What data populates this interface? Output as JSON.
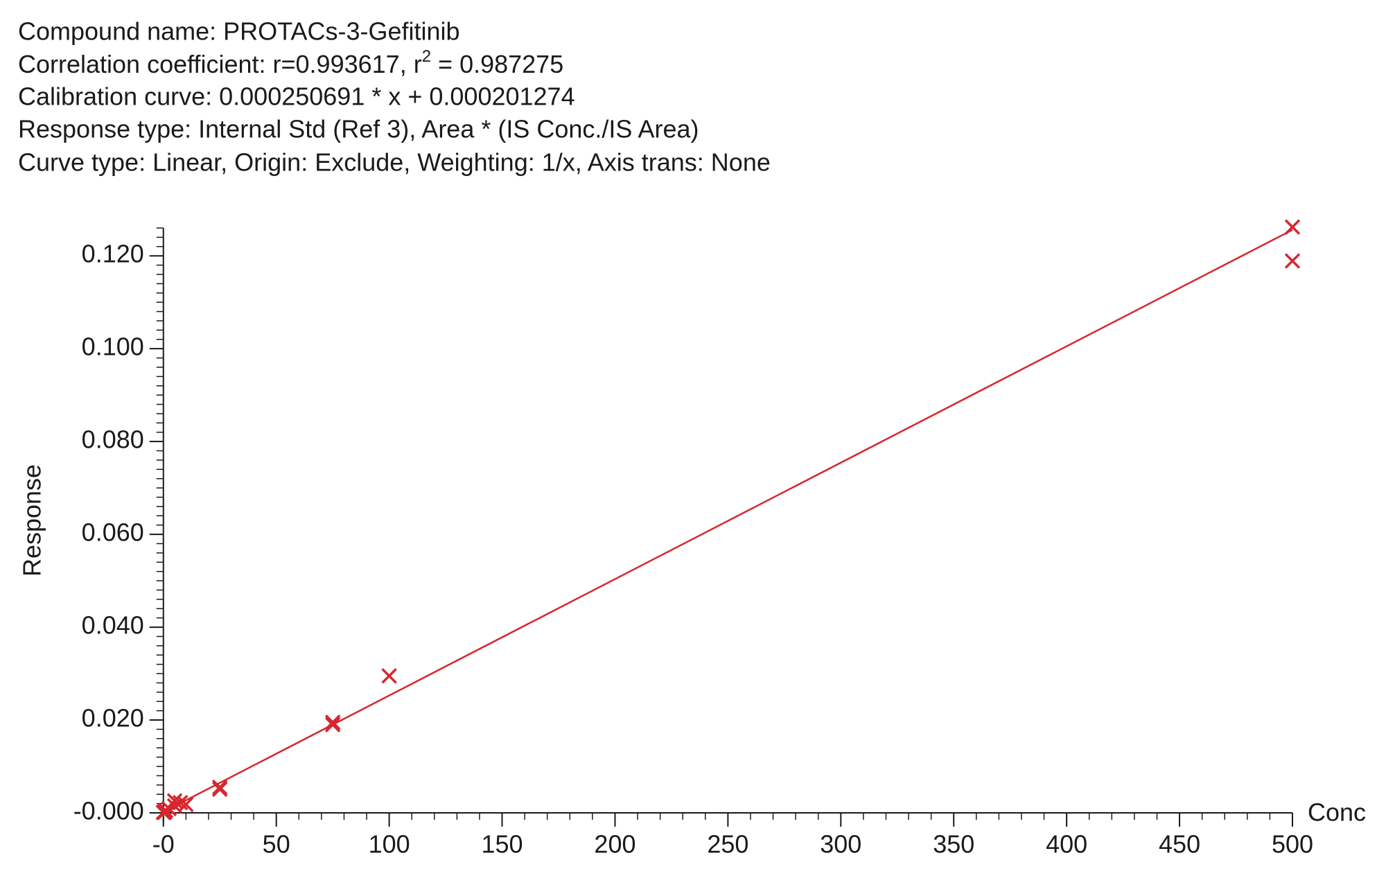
{
  "chart_data": {
    "type": "scatter",
    "header": {
      "compound": "Compound name: PROTACs-3-Gefitinib",
      "correlation": [
        "Correlation coefficient: r=0.993617, r",
        "2",
        " = 0.987275"
      ],
      "calibration": "Calibration curve: 0.000250691 * x + 0.000201274",
      "response": "Response type: Internal Std (Ref 3), Area * (IS Conc./IS Area)",
      "curve": "Curve type: Linear, Origin: Exclude, Weighting: 1/x, Axis trans: None"
    },
    "x_label": "Conc",
    "y_label": "Response",
    "xlim": [
      -3,
      500
    ],
    "ylim": [
      0,
      0.126
    ],
    "xticks": [
      {
        "value": 0,
        "label": "-0"
      },
      50,
      100,
      150,
      200,
      250,
      300,
      350,
      400,
      450,
      500
    ],
    "yticks": [
      {
        "value": 0,
        "label": "-0.000"
      },
      {
        "value": 0.02,
        "label": "0.020"
      },
      {
        "value": 0.04,
        "label": "0.040"
      },
      {
        "value": 0.06,
        "label": "0.060"
      },
      {
        "value": 0.08,
        "label": "0.080"
      },
      {
        "value": 0.1,
        "label": "0.100"
      },
      {
        "value": 0.12,
        "label": "0.120"
      }
    ],
    "x_minor_step": 10,
    "y_minor_step": 0.002,
    "series": [
      {
        "style": "marker",
        "color": "#d7262f",
        "x": [
          500,
          500,
          100,
          75,
          75,
          25,
          25,
          10,
          7.5,
          5,
          5,
          2.5,
          1,
          0.5,
          0.5,
          0
        ],
        "values": [
          0.1262,
          0.1189,
          0.0295,
          0.0195,
          0.019,
          0.0055,
          0.0051,
          0.0018,
          0.0022,
          0.0026,
          0.0015,
          0.0009,
          0.0005,
          0.0002,
          0.0001,
          0.0001
        ]
      },
      {
        "style": "line",
        "color": "#d7262f",
        "x": [
          0,
          500
        ],
        "values": [
          0.0002,
          0.1256
        ]
      }
    ]
  }
}
